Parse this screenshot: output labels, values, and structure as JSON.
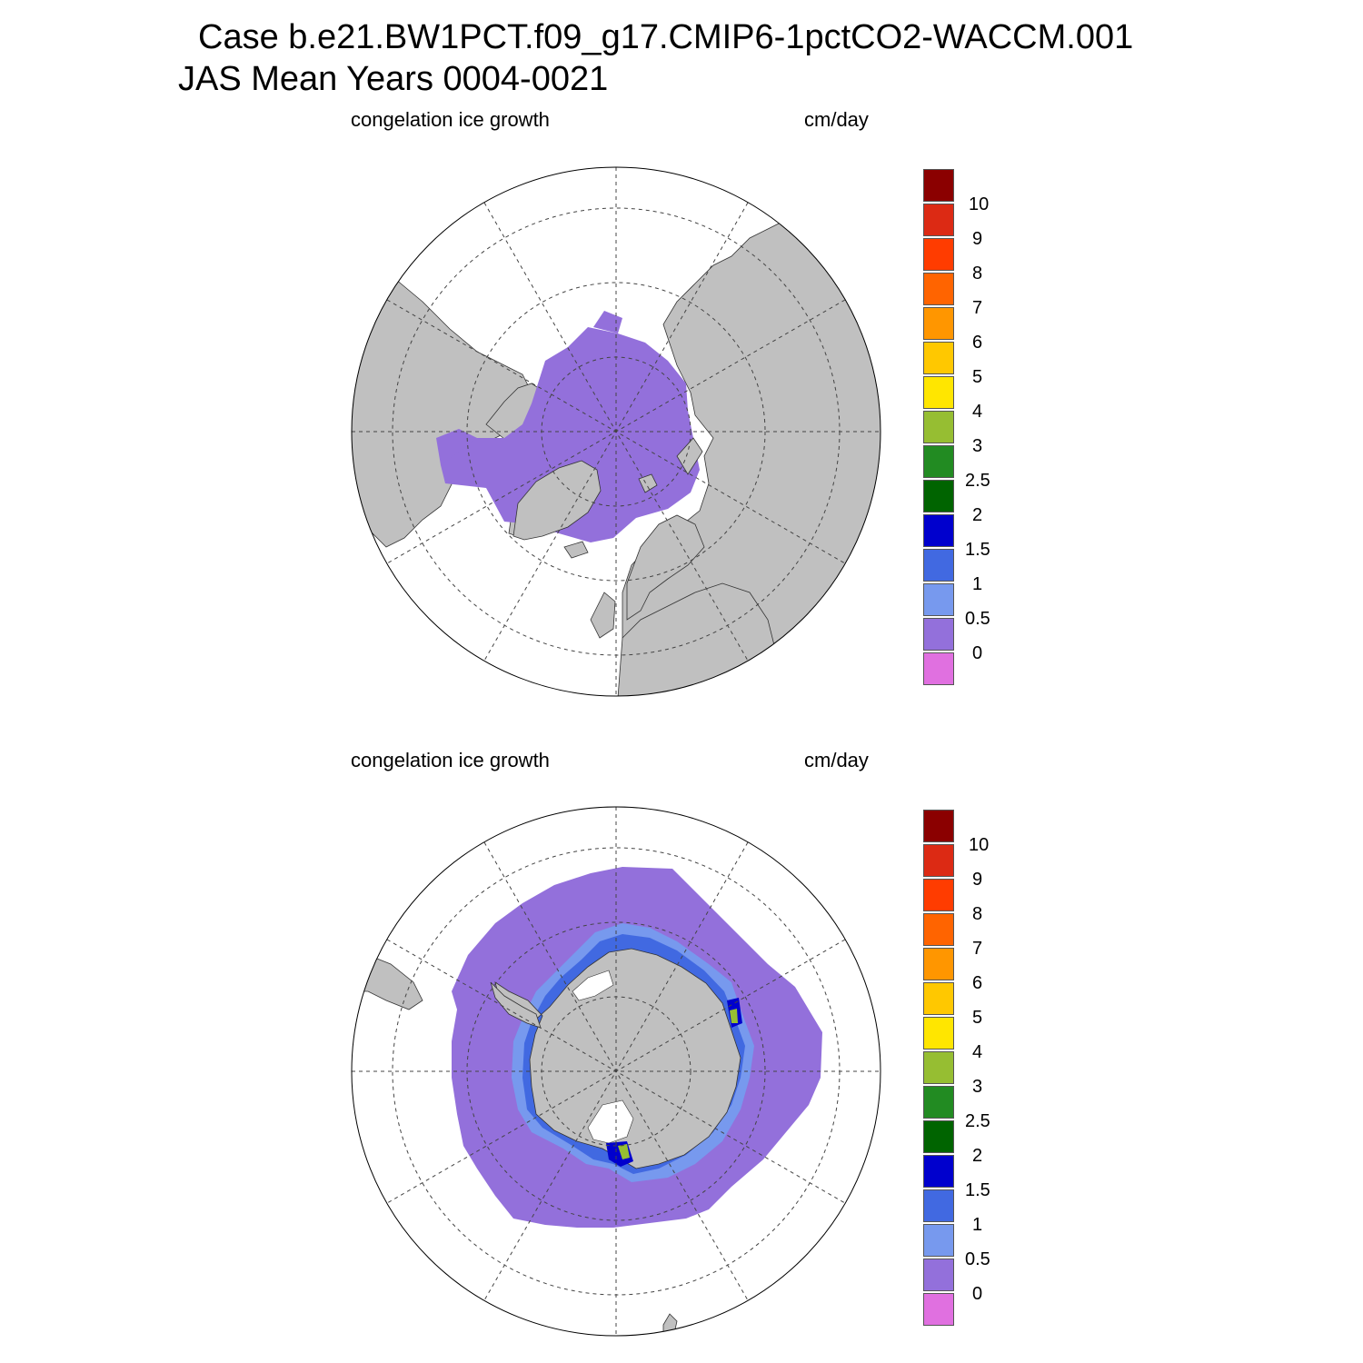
{
  "title": {
    "line1": "Case b.e21.BW1PCT.f09_g17.CMIP6-1pctCO2-WACCM.001",
    "line2": "JAS Mean   Years 0004-0021"
  },
  "panels": [
    {
      "id": "north",
      "variable": "congelation ice growth",
      "units": "cm/day"
    },
    {
      "id": "south",
      "variable": "congelation ice growth",
      "units": "cm/day"
    }
  ],
  "colorbar": {
    "labels": [
      "10",
      "9",
      "8",
      "7",
      "6",
      "5",
      "4",
      "3",
      "2.5",
      "2",
      "1.5",
      "1",
      "0.5",
      "0"
    ],
    "colors": [
      "#8b0000",
      "#dc2a14",
      "#ff3c00",
      "#ff6400",
      "#ff9600",
      "#ffc800",
      "#ffe600",
      "#96be32",
      "#228b22",
      "#006400",
      "#0000cd",
      "#4169e1",
      "#7799ee",
      "#9370db",
      "#e070e0"
    ]
  },
  "colors": {
    "land": "#c0c0c0",
    "ice_low": "#9370db",
    "ice_mid": "#7799ee",
    "ice_high": "#4169e1",
    "ice_peak": "#0000cd",
    "ice_green": "#96be32"
  }
}
